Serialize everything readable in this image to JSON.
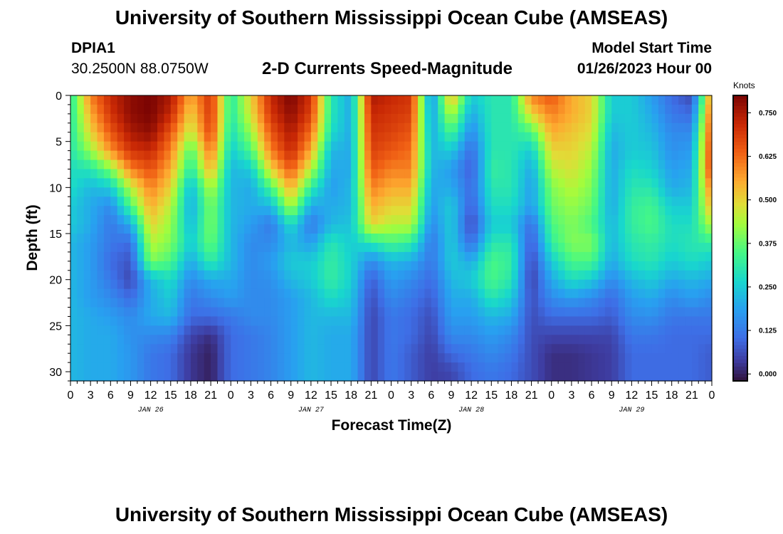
{
  "header": {
    "title": "University of Southern Mississippi Ocean Cube (AMSEAS)",
    "station_id": "DPIA1",
    "station_coords": "30.2500N  88.0750W",
    "chart_title": "2-D Currents Speed-Magnitude",
    "start_label": "Model Start Time",
    "start_value": "01/26/2023 Hour 00"
  },
  "footer": {
    "title": "University of Southern Mississippi Ocean Cube (AMSEAS)"
  },
  "chart_data": {
    "type": "heatmap",
    "title": "2-D Currents Speed-Magnitude",
    "xlabel": "Forecast Time(Z)",
    "ylabel": "Depth (ft)",
    "colorbar_label": "Knots",
    "x_tick_labels": [
      "0",
      "3",
      "6",
      "9",
      "12",
      "15",
      "18",
      "21",
      "0",
      "3",
      "6",
      "9",
      "12",
      "15",
      "18",
      "21",
      "0",
      "3",
      "6",
      "9",
      "12",
      "15",
      "18",
      "21",
      "0",
      "3",
      "6",
      "9",
      "12",
      "15",
      "18",
      "21",
      "0"
    ],
    "date_labels": [
      "JAN 26",
      "JAN 27",
      "JAN 28",
      "JAN 29"
    ],
    "y_ticks": [
      0,
      5,
      10,
      15,
      20,
      25,
      30
    ],
    "y_tick_labels": [
      "0",
      "5",
      "10",
      "15",
      "20",
      "25",
      "30"
    ],
    "ylim": [
      0,
      31
    ],
    "xlim_hours": [
      0,
      96
    ],
    "colorbar_ticks": [
      0.0,
      0.125,
      0.25,
      0.375,
      0.5,
      0.625,
      0.75
    ],
    "colorbar_tick_labels": [
      "0.000",
      "0.125",
      "0.250",
      "0.375",
      "0.500",
      "0.625",
      "0.750"
    ],
    "colorbar_range": [
      -0.02,
      0.8
    ],
    "depths_ft": [
      0,
      2,
      4,
      6,
      8,
      10,
      12,
      14,
      16,
      18,
      20,
      22,
      24,
      26,
      28,
      30
    ],
    "hours": [
      0,
      3,
      6,
      9,
      12,
      15,
      18,
      21,
      24,
      27,
      30,
      33,
      36,
      39,
      42,
      45,
      48,
      51,
      54,
      57,
      60,
      63,
      66,
      69,
      72,
      75,
      78,
      81,
      84,
      87,
      90,
      93,
      96
    ],
    "speed_knots": [
      [
        0.3,
        0.3,
        0.3,
        0.3,
        0.28,
        0.28,
        0.25,
        0.25,
        0.22,
        0.22,
        0.22,
        0.22,
        0.22,
        0.22,
        0.22,
        0.22
      ],
      [
        0.6,
        0.55,
        0.5,
        0.42,
        0.3,
        0.22,
        0.2,
        0.2,
        0.18,
        0.18,
        0.18,
        0.18,
        0.2,
        0.2,
        0.2,
        0.2
      ],
      [
        0.72,
        0.7,
        0.65,
        0.58,
        0.4,
        0.25,
        0.15,
        0.12,
        0.12,
        0.1,
        0.12,
        0.15,
        0.18,
        0.2,
        0.2,
        0.2
      ],
      [
        0.78,
        0.78,
        0.75,
        0.7,
        0.6,
        0.45,
        0.35,
        0.2,
        0.1,
        0.07,
        0.05,
        0.1,
        0.15,
        0.16,
        0.17,
        0.17
      ],
      [
        0.8,
        0.8,
        0.78,
        0.72,
        0.66,
        0.6,
        0.55,
        0.5,
        0.45,
        0.4,
        0.22,
        0.2,
        0.2,
        0.15,
        0.12,
        0.12
      ],
      [
        0.75,
        0.72,
        0.65,
        0.6,
        0.55,
        0.5,
        0.45,
        0.42,
        0.4,
        0.35,
        0.28,
        0.25,
        0.22,
        0.14,
        0.1,
        0.1
      ],
      [
        0.55,
        0.5,
        0.45,
        0.35,
        0.3,
        0.22,
        0.2,
        0.22,
        0.25,
        0.2,
        0.15,
        0.12,
        0.1,
        0.05,
        0.03,
        0.03
      ],
      [
        0.7,
        0.7,
        0.68,
        0.62,
        0.55,
        0.45,
        0.4,
        0.4,
        0.38,
        0.32,
        0.2,
        0.15,
        0.1,
        0.02,
        0.0,
        0.0
      ],
      [
        0.3,
        0.3,
        0.28,
        0.25,
        0.22,
        0.22,
        0.22,
        0.22,
        0.22,
        0.22,
        0.2,
        0.18,
        0.12,
        0.1,
        0.1,
        0.1
      ],
      [
        0.5,
        0.48,
        0.42,
        0.35,
        0.25,
        0.2,
        0.2,
        0.18,
        0.15,
        0.15,
        0.15,
        0.15,
        0.15,
        0.12,
        0.12,
        0.12
      ],
      [
        0.72,
        0.7,
        0.65,
        0.6,
        0.5,
        0.35,
        0.22,
        0.12,
        0.15,
        0.18,
        0.16,
        0.15,
        0.15,
        0.14,
        0.14,
        0.14
      ],
      [
        0.8,
        0.78,
        0.75,
        0.72,
        0.65,
        0.55,
        0.45,
        0.28,
        0.22,
        0.25,
        0.22,
        0.18,
        0.18,
        0.18,
        0.18,
        0.18
      ],
      [
        0.7,
        0.68,
        0.62,
        0.55,
        0.45,
        0.32,
        0.2,
        0.12,
        0.18,
        0.25,
        0.25,
        0.22,
        0.22,
        0.22,
        0.22,
        0.22
      ],
      [
        0.3,
        0.3,
        0.28,
        0.22,
        0.2,
        0.18,
        0.2,
        0.22,
        0.3,
        0.32,
        0.32,
        0.28,
        0.22,
        0.2,
        0.2,
        0.2
      ],
      [
        0.2,
        0.2,
        0.2,
        0.2,
        0.2,
        0.22,
        0.22,
        0.24,
        0.25,
        0.26,
        0.26,
        0.24,
        0.22,
        0.2,
        0.2,
        0.2
      ],
      [
        0.75,
        0.72,
        0.7,
        0.68,
        0.65,
        0.6,
        0.55,
        0.5,
        0.3,
        0.15,
        0.08,
        0.06,
        0.05,
        0.05,
        0.05,
        0.05
      ],
      [
        0.72,
        0.7,
        0.68,
        0.65,
        0.6,
        0.55,
        0.5,
        0.45,
        0.35,
        0.22,
        0.18,
        0.15,
        0.12,
        0.12,
        0.12,
        0.12
      ],
      [
        0.7,
        0.68,
        0.65,
        0.62,
        0.6,
        0.55,
        0.5,
        0.45,
        0.32,
        0.2,
        0.15,
        0.12,
        0.1,
        0.1,
        0.08,
        0.08
      ],
      [
        0.15,
        0.18,
        0.2,
        0.22,
        0.22,
        0.2,
        0.18,
        0.15,
        0.12,
        0.12,
        0.1,
        0.08,
        0.06,
        0.05,
        0.04,
        0.04
      ],
      [
        0.55,
        0.45,
        0.35,
        0.25,
        0.18,
        0.2,
        0.25,
        0.25,
        0.25,
        0.25,
        0.22,
        0.2,
        0.18,
        0.15,
        0.1,
        0.05
      ],
      [
        0.25,
        0.2,
        0.15,
        0.1,
        0.08,
        0.1,
        0.08,
        0.05,
        0.1,
        0.2,
        0.25,
        0.2,
        0.18,
        0.15,
        0.12,
        0.1
      ],
      [
        0.3,
        0.3,
        0.3,
        0.3,
        0.32,
        0.3,
        0.28,
        0.25,
        0.3,
        0.35,
        0.35,
        0.3,
        0.22,
        0.18,
        0.15,
        0.12
      ],
      [
        0.3,
        0.3,
        0.3,
        0.3,
        0.3,
        0.3,
        0.28,
        0.25,
        0.3,
        0.32,
        0.3,
        0.25,
        0.2,
        0.15,
        0.12,
        0.1
      ],
      [
        0.6,
        0.5,
        0.35,
        0.25,
        0.2,
        0.18,
        0.18,
        0.1,
        0.07,
        0.05,
        0.04,
        0.06,
        0.06,
        0.06,
        0.06,
        0.06
      ],
      [
        0.65,
        0.6,
        0.55,
        0.5,
        0.45,
        0.4,
        0.38,
        0.35,
        0.32,
        0.25,
        0.2,
        0.15,
        0.1,
        0.05,
        0.02,
        0.02
      ],
      [
        0.55,
        0.55,
        0.52,
        0.5,
        0.48,
        0.45,
        0.42,
        0.4,
        0.4,
        0.35,
        0.28,
        0.18,
        0.1,
        0.05,
        0.02,
        0.02
      ],
      [
        0.5,
        0.5,
        0.48,
        0.45,
        0.42,
        0.4,
        0.38,
        0.35,
        0.4,
        0.35,
        0.25,
        0.15,
        0.1,
        0.05,
        0.03,
        0.03
      ],
      [
        0.25,
        0.25,
        0.22,
        0.2,
        0.2,
        0.2,
        0.2,
        0.22,
        0.22,
        0.2,
        0.15,
        0.1,
        0.08,
        0.05,
        0.04,
        0.04
      ],
      [
        0.25,
        0.25,
        0.25,
        0.25,
        0.28,
        0.3,
        0.32,
        0.32,
        0.3,
        0.28,
        0.22,
        0.18,
        0.15,
        0.12,
        0.1,
        0.1
      ],
      [
        0.18,
        0.2,
        0.22,
        0.24,
        0.26,
        0.3,
        0.34,
        0.35,
        0.32,
        0.3,
        0.25,
        0.2,
        0.16,
        0.12,
        0.1,
        0.1
      ],
      [
        0.1,
        0.12,
        0.15,
        0.16,
        0.18,
        0.2,
        0.25,
        0.28,
        0.28,
        0.25,
        0.2,
        0.15,
        0.12,
        0.1,
        0.1,
        0.1
      ],
      [
        0.05,
        0.1,
        0.15,
        0.18,
        0.2,
        0.22,
        0.25,
        0.28,
        0.3,
        0.28,
        0.22,
        0.18,
        0.12,
        0.1,
        0.1,
        0.1
      ],
      [
        0.6,
        0.65,
        0.68,
        0.7,
        0.7,
        0.62,
        0.55,
        0.45,
        0.32,
        0.25,
        0.2,
        0.15,
        0.12,
        0.1,
        0.08,
        0.08
      ]
    ]
  }
}
